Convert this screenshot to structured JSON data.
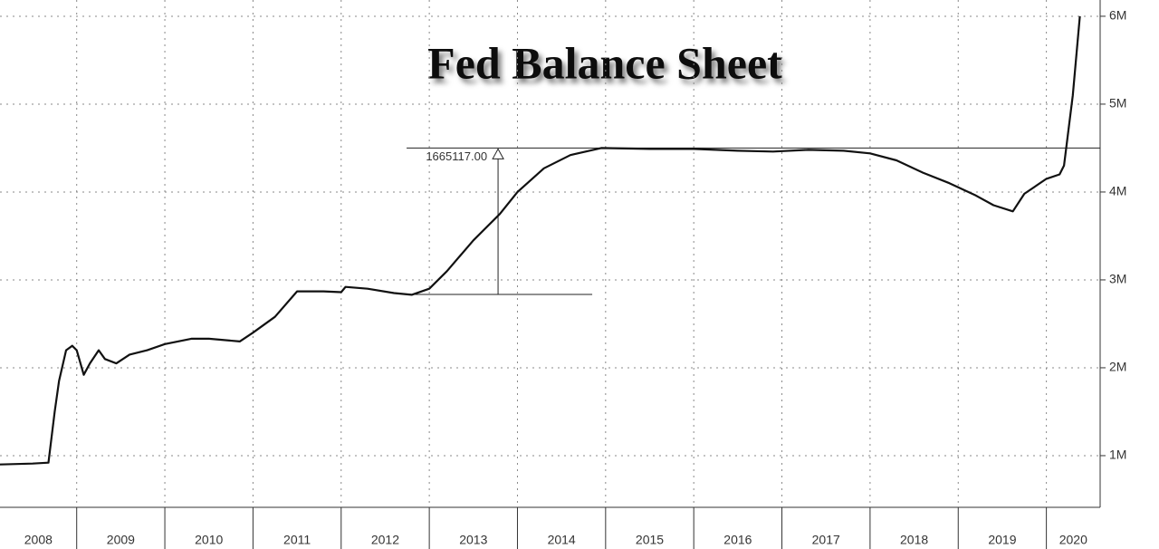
{
  "chart_data": {
    "type": "line",
    "title": "Fed Balance Sheet",
    "x": [
      2008.13,
      2008.5,
      2008.68,
      2008.75,
      2008.8,
      2008.88,
      2008.95,
      2009.0,
      2009.08,
      2009.15,
      2009.25,
      2009.32,
      2009.45,
      2009.6,
      2009.8,
      2010.0,
      2010.3,
      2010.5,
      2010.85,
      2011.0,
      2011.25,
      2011.5,
      2011.8,
      2012.0,
      2012.05,
      2012.3,
      2012.6,
      2012.8,
      2013.0,
      2013.2,
      2013.5,
      2013.8,
      2014.0,
      2014.3,
      2014.6,
      2014.95,
      2015.5,
      2016.0,
      2016.5,
      2016.9,
      2017.3,
      2017.7,
      2018.0,
      2018.3,
      2018.6,
      2018.9,
      2019.2,
      2019.4,
      2019.62,
      2019.75,
      2020.0,
      2020.15,
      2020.2,
      2020.3,
      2020.38
    ],
    "series": [
      {
        "color": "#111111",
        "values": [
          900000,
          910000,
          920000,
          1500000,
          1850000,
          2200000,
          2250000,
          2200000,
          1920000,
          2050000,
          2200000,
          2100000,
          2050000,
          2150000,
          2200000,
          2270000,
          2330000,
          2330000,
          2300000,
          2400000,
          2580000,
          2870000,
          2870000,
          2860000,
          2920000,
          2900000,
          2850000,
          2830000,
          2900000,
          3100000,
          3450000,
          3750000,
          4000000,
          4270000,
          4420000,
          4500000,
          4490000,
          4490000,
          4470000,
          4460000,
          4480000,
          4470000,
          4440000,
          4360000,
          4220000,
          4100000,
          3960000,
          3850000,
          3780000,
          3980000,
          4150000,
          4200000,
          4300000,
          5100000,
          6000000
        ]
      }
    ],
    "xlim": [
      2008.13,
      2020.61
    ],
    "xticks": [
      {
        "value": 2008,
        "label": "2008"
      },
      {
        "value": 2009,
        "label": "2009"
      },
      {
        "value": 2010,
        "label": "2010"
      },
      {
        "value": 2011,
        "label": "2011"
      },
      {
        "value": 2012,
        "label": "2012"
      },
      {
        "value": 2013,
        "label": "2013"
      },
      {
        "value": 2014,
        "label": "2014"
      },
      {
        "value": 2015,
        "label": "2015"
      },
      {
        "value": 2016,
        "label": "2016"
      },
      {
        "value": 2017,
        "label": "2017"
      },
      {
        "value": 2018,
        "label": "2018"
      },
      {
        "value": 2019,
        "label": "2019"
      },
      {
        "value": 2020,
        "label": "2020"
      }
    ],
    "ylim": [
      515000,
      6185000
    ],
    "yticks": [
      {
        "value": 1000000,
        "label": "1M"
      },
      {
        "value": 2000000,
        "label": "2M"
      },
      {
        "value": 3000000,
        "label": "3M"
      },
      {
        "value": 4000000,
        "label": "4M"
      },
      {
        "value": 5000000,
        "label": "5M"
      },
      {
        "value": 6000000,
        "label": "6M"
      }
    ],
    "grid": true,
    "annotation": {
      "x": 2013.78,
      "base": 2835000,
      "value": 1665117,
      "label": "1665117.00"
    }
  }
}
